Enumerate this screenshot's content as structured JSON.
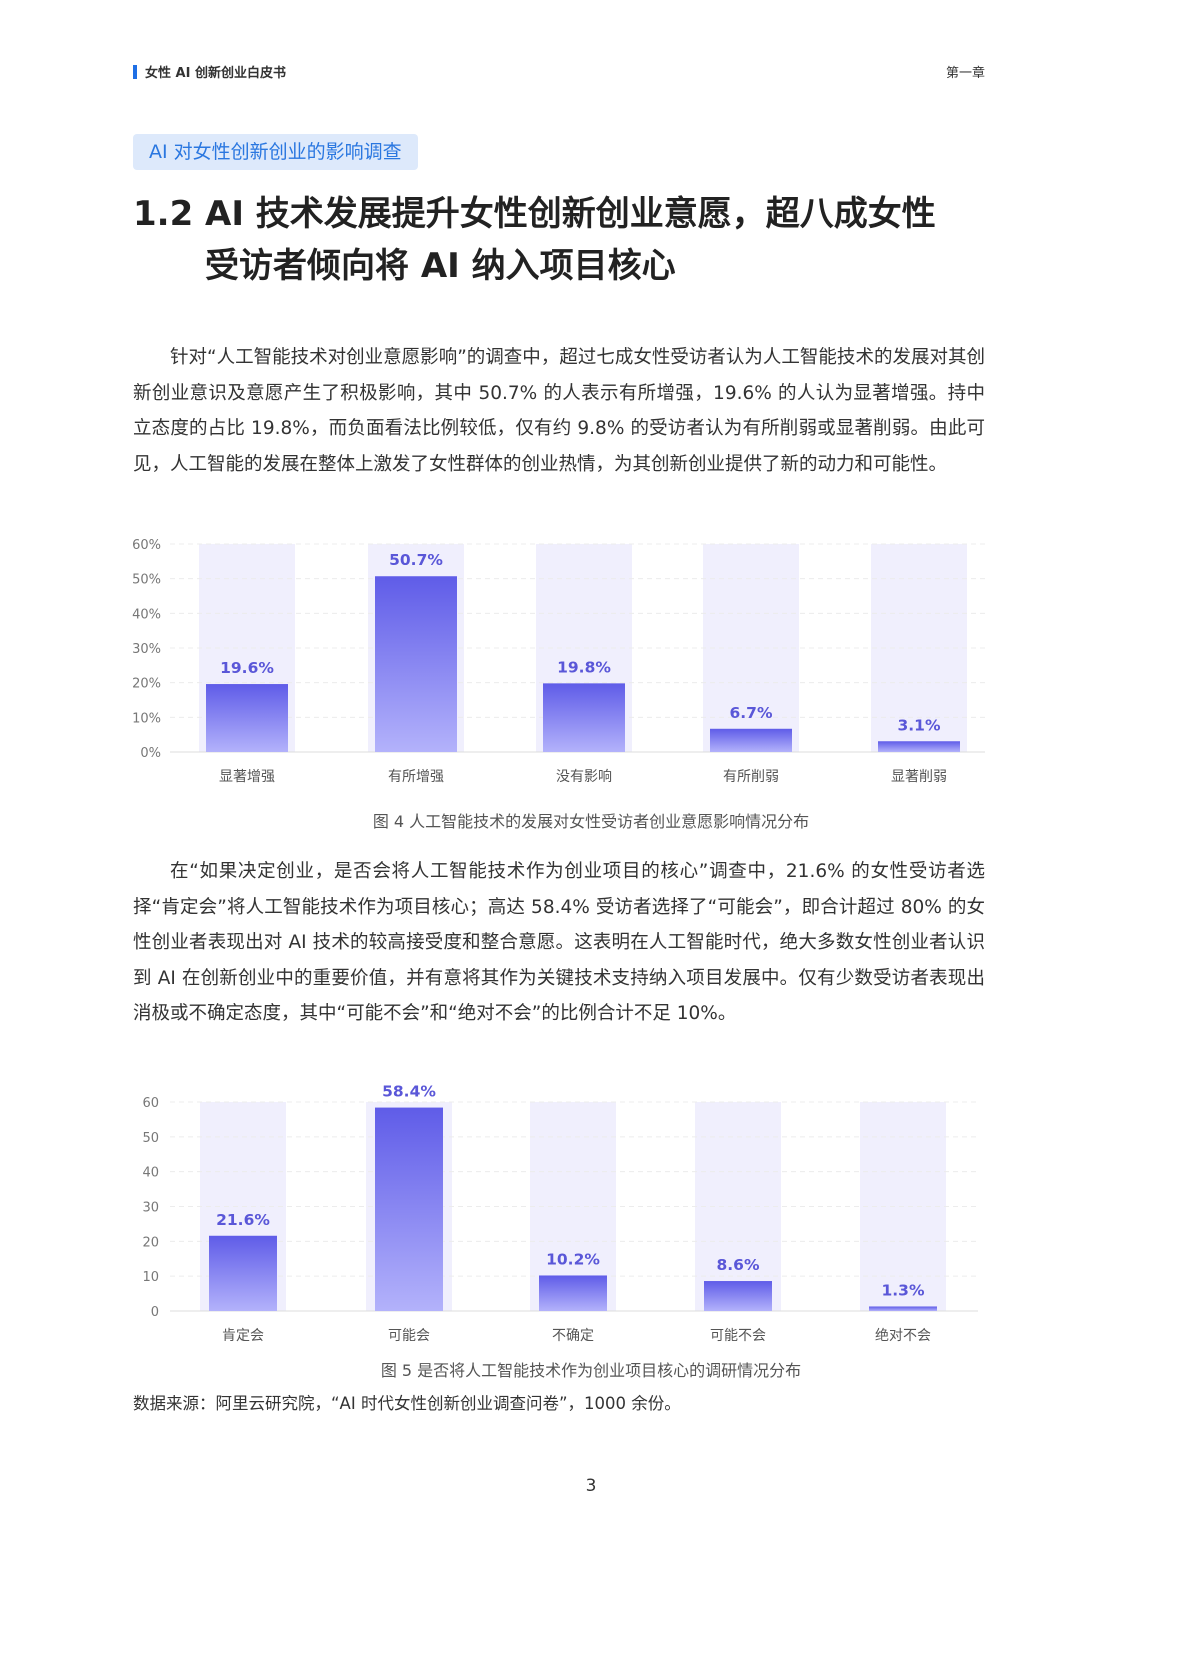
{
  "header": {
    "doc_title": "女性 AI 创新创业白皮书",
    "chapter": "第一章",
    "accent": "#1f6fe5"
  },
  "section_tag": "AI 对女性创新创业的影响调查",
  "heading": {
    "number": "1.2",
    "line1": "AI 技术发展提升女性创新创业意愿，超八成女性",
    "line2": "受访者倾向将 AI 纳入项目核心"
  },
  "paragraph1": "针对“人工智能技术对创业意愿影响”的调查中，超过七成女性受访者认为人工智能技术的发展对其创新创业意识及意愿产生了积极影响，其中 50.7% 的人表示有所增强，19.6% 的人认为显著增强。持中立态度的占比 19.8%，而负面看法比例较低，仅有约 9.8% 的受访者认为有所削弱或显著削弱。由此可见，人工智能的发展在整体上激发了女性群体的创业热情，为其创新创业提供了新的动力和可能性。",
  "paragraph2": "在“如果决定创业，是否会将人工智能技术作为创业项目的核心”调查中，21.6% 的女性受访者选择“肯定会”将人工智能技术作为项目核心；高达 58.4% 受访者选择了“可能会”，即合计超过 80% 的女性创业者表现出对 AI 技术的较高接受度和整合意愿。这表明在人工智能时代，绝大多数女性创业者认识到 AI 在创新创业中的重要价值，并有意将其作为关键技术支持纳入项目发展中。仅有少数受访者表现出消极或不确定态度，其中“可能不会”和“绝对不会”的比例合计不足 10%。",
  "source": "数据来源：阿里云研究院，“AI 时代女性创新创业调查问卷”，1000 余份。",
  "page_number": "3",
  "chart_data": [
    {
      "type": "bar",
      "caption": "图 4  人工智能技术的发展对女性受访者创业意愿影响情况分布",
      "categories": [
        "显著增强",
        "有所增强",
        "没有影响",
        "有所削弱",
        "显著削弱"
      ],
      "values": [
        19.6,
        50.7,
        19.8,
        6.7,
        3.1
      ],
      "data_labels": [
        "19.6%",
        "50.7%",
        "19.8%",
        "6.7%",
        "3.1%"
      ],
      "yticks": [
        "0%",
        "10%",
        "20%",
        "30%",
        "40%",
        "50%",
        "60%"
      ],
      "ylim": [
        0,
        60
      ],
      "grid": true,
      "colors": {
        "bar_top": "#5f5ce8",
        "bar_bottom": "#b3b2fb",
        "column_bg": "#f0effd",
        "label": "#5a57d8"
      }
    },
    {
      "type": "bar",
      "caption": "图 5  是否将人工智能技术作为创业项目核心的调研情况分布",
      "categories": [
        "肯定会",
        "可能会",
        "不确定",
        "可能不会",
        "绝对不会"
      ],
      "values": [
        21.6,
        58.4,
        10.2,
        8.6,
        1.3
      ],
      "data_labels": [
        "21.6%",
        "58.4%",
        "10.2%",
        "8.6%",
        "1.3%"
      ],
      "yticks": [
        "0",
        "10",
        "20",
        "30",
        "40",
        "50",
        "60"
      ],
      "ylim": [
        0,
        60
      ],
      "grid": true,
      "colors": {
        "bar_top": "#5f5ce8",
        "bar_bottom": "#b3b2fb",
        "column_bg": "#f0effd",
        "label": "#5a57d8"
      }
    }
  ]
}
